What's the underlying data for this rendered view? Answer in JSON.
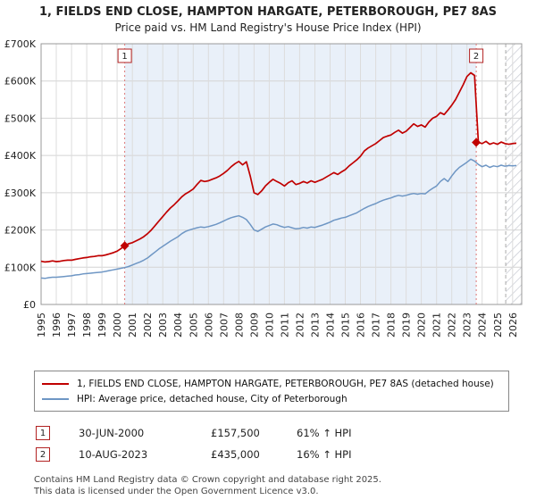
{
  "title": "1, FIELDS END CLOSE, HAMPTON HARGATE, PETERBOROUGH, PE7 8AS",
  "subtitle": "Price paid vs. HM Land Registry's House Price Index (HPI)",
  "chart_data": {
    "type": "line",
    "xlim": [
      1995,
      2026.6
    ],
    "ylim": [
      0,
      700000
    ],
    "y_ticks": [
      "£0",
      "£100K",
      "£200K",
      "£300K",
      "£400K",
      "£500K",
      "£600K",
      "£700K"
    ],
    "x_ticks": [
      1995,
      1996,
      1997,
      1998,
      1999,
      2000,
      2001,
      2002,
      2003,
      2004,
      2005,
      2006,
      2007,
      2008,
      2009,
      2010,
      2011,
      2012,
      2013,
      2014,
      2015,
      2016,
      2017,
      2018,
      2019,
      2020,
      2021,
      2022,
      2023,
      2024,
      2025,
      2026
    ],
    "grid": true,
    "legend_position": "bottom",
    "shaded_region": [
      2000.5,
      2023.61
    ],
    "hatch_region": [
      2025.55,
      2026.6
    ],
    "colors": {
      "property": "#c00000",
      "hpi": "#6e96c4",
      "shade": "#e9f0f9",
      "grid": "#d4d4d4",
      "grid_v": "#dcdcdc",
      "border": "#999999",
      "sale_line": "#dd7777",
      "sale_point": "#c00000",
      "sale_box_border": "#b22222",
      "hatch": "#c9ccd4"
    },
    "series": [
      {
        "name": "1, FIELDS END CLOSE, HAMPTON HARGATE, PETERBOROUGH, PE7 8AS (detached house)",
        "color": "#c00000",
        "width": 1.7,
        "start": 1995,
        "step": 0.25,
        "values_k": [
          116,
          114,
          115,
          117,
          115,
          116,
          118,
          119,
          119,
          121,
          123,
          125,
          126,
          128,
          129,
          131,
          131,
          133,
          136,
          139,
          143,
          150,
          158,
          163,
          166,
          171,
          176,
          182,
          190,
          200,
          212,
          224,
          236,
          248,
          259,
          268,
          278,
          289,
          297,
          303,
          310,
          322,
          333,
          330,
          332,
          336,
          340,
          345,
          352,
          360,
          370,
          378,
          384,
          375,
          383,
          345,
          300,
          295,
          305,
          318,
          328,
          336,
          330,
          325,
          318,
          327,
          332,
          322,
          325,
          330,
          326,
          332,
          328,
          332,
          336,
          342,
          348,
          354,
          349,
          356,
          362,
          372,
          380,
          388,
          398,
          412,
          420,
          426,
          432,
          440,
          448,
          452,
          455,
          462,
          468,
          460,
          465,
          475,
          485,
          478,
          482,
          476,
          490,
          500,
          505,
          515,
          510,
          522,
          535,
          550,
          570,
          590,
          612,
          622,
          615,
          435,
          432,
          438,
          430,
          434,
          430,
          436,
          432,
          430,
          432,
          433
        ]
      },
      {
        "name": "HPI: Average price, detached house, City of Peterborough",
        "color": "#6e96c4",
        "width": 1.5,
        "start": 1995,
        "step": 0.25,
        "values_k": [
          71,
          70,
          72,
          73,
          73,
          74,
          75,
          76,
          77,
          79,
          80,
          82,
          83,
          84,
          85,
          86,
          87,
          89,
          91,
          93,
          95,
          97,
          99,
          102,
          106,
          110,
          114,
          119,
          125,
          133,
          141,
          149,
          156,
          163,
          170,
          176,
          182,
          190,
          196,
          200,
          203,
          206,
          208,
          207,
          209,
          212,
          215,
          219,
          224,
          229,
          233,
          236,
          238,
          234,
          228,
          215,
          200,
          196,
          202,
          208,
          212,
          216,
          214,
          210,
          207,
          209,
          206,
          203,
          204,
          207,
          205,
          208,
          207,
          210,
          213,
          217,
          221,
          226,
          229,
          232,
          234,
          238,
          242,
          246,
          252,
          258,
          263,
          267,
          271,
          276,
          280,
          283,
          286,
          290,
          293,
          291,
          293,
          296,
          298,
          296,
          298,
          297,
          305,
          312,
          318,
          330,
          338,
          330,
          345,
          358,
          368,
          375,
          382,
          390,
          385,
          376,
          370,
          374,
          368,
          372,
          370,
          374,
          371,
          373,
          372,
          373
        ]
      }
    ],
    "sales": [
      {
        "label": "1",
        "x": 2000.5,
        "value_k": 157.5
      },
      {
        "label": "2",
        "x": 2023.61,
        "value_k": 435
      }
    ]
  },
  "legend": [
    {
      "label": "1, FIELDS END CLOSE, HAMPTON HARGATE, PETERBOROUGH, PE7 8AS (detached house)"
    },
    {
      "label": "HPI: Average price, detached house, City of Peterborough"
    }
  ],
  "sales_table": [
    {
      "num": "1",
      "date": "30-JUN-2000",
      "price": "£157,500",
      "hpi": "61% ↑ HPI"
    },
    {
      "num": "2",
      "date": "10-AUG-2023",
      "price": "£435,000",
      "hpi": "16% ↑ HPI"
    }
  ],
  "footer": [
    "Contains HM Land Registry data © Crown copyright and database right 2025.",
    "This data is licensed under the Open Government Licence v3.0."
  ]
}
